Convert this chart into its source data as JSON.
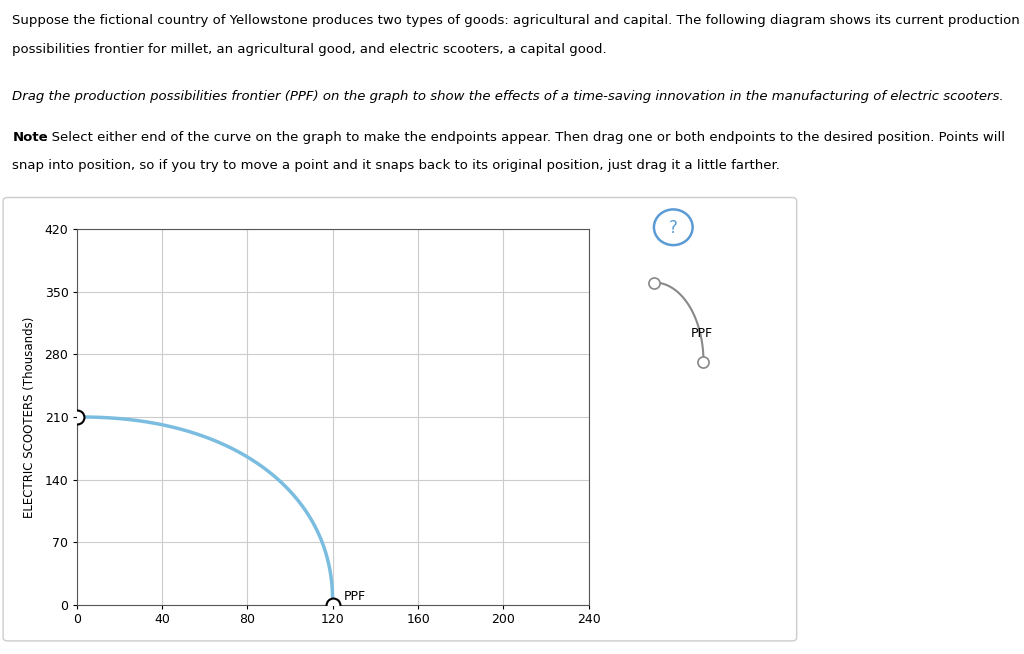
{
  "title_text1": "Suppose the fictional country of Yellowstone produces two types of goods: agricultural and capital. The following diagram shows its current production",
  "title_text2": "possibilities frontier for millet, an agricultural good, and electric scooters, a capital good.",
  "italic_text": "Drag the production possibilities frontier (PPF) on the graph to show the effects of a time-saving innovation in the manufacturing of electric scooters.",
  "note_bold": "Note",
  "note_text": ": Select either end of the curve on the graph to make the endpoints appear. Then drag one or both endpoints to the desired position. Points will",
  "note_text2": "snap into position, so if you try to move a point and it snaps back to its original position, just drag it a little farther.",
  "ylabel": "ELECTRIC SCOOTERS (Thousands)",
  "yticks": [
    0,
    70,
    140,
    210,
    280,
    350,
    420
  ],
  "xticks": [
    0,
    40,
    80,
    120,
    160,
    200,
    240
  ],
  "xlim": [
    0,
    240
  ],
  "ylim": [
    0,
    420
  ],
  "ppf_color": "#7bbde0",
  "ppf_endpoint1": [
    0,
    210
  ],
  "ppf_endpoint2": [
    120,
    0
  ],
  "ppf_label": "PPF",
  "legend_curve_color": "#888888",
  "legend_label": "PPF",
  "grid_color": "#cccccc",
  "background_color": "#ffffff",
  "panel_border_color": "#cccccc",
  "question_circle_color": "#5b9bd5",
  "question_mark_color": "#5b9bd5"
}
